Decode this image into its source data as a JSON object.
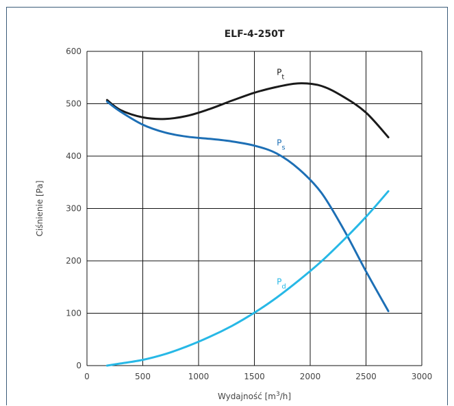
{
  "chart_data": {
    "type": "line",
    "title": "ELF-4-250T",
    "xlabel_parts": {
      "base": "Wydajność [m",
      "sup": "3",
      "tail": "/h]"
    },
    "ylabel": "Ciśnienie [Pa]",
    "xlim": [
      0,
      3000
    ],
    "ylim": [
      0,
      600
    ],
    "xticks": [
      0,
      500,
      1000,
      1500,
      2000,
      2500,
      3000
    ],
    "yticks": [
      0,
      100,
      200,
      300,
      400,
      500,
      600
    ],
    "grid": true,
    "series": [
      {
        "name": "Pt",
        "label_base": "P",
        "label_sub": "t",
        "color": "#1a1a1a",
        "label_at": [
          1700,
          555
        ],
        "x": [
          180,
          300,
          500,
          700,
          900,
          1100,
          1300,
          1500,
          1700,
          1900,
          2100,
          2300,
          2500,
          2700
        ],
        "y": [
          507,
          488,
          474,
          471,
          477,
          490,
          506,
          521,
          532,
          539,
          534,
          513,
          483,
          436
        ]
      },
      {
        "name": "Ps",
        "label_base": "P",
        "label_sub": "s",
        "color": "#1d6fb5",
        "label_at": [
          1700,
          420
        ],
        "x": [
          180,
          300,
          500,
          700,
          900,
          1100,
          1300,
          1500,
          1700,
          1900,
          2100,
          2300,
          2500,
          2700
        ],
        "y": [
          504,
          485,
          460,
          445,
          437,
          433,
          428,
          420,
          405,
          375,
          330,
          260,
          180,
          104
        ]
      },
      {
        "name": "Pd",
        "label_base": "P",
        "label_sub": "d",
        "color": "#27b8e6",
        "label_at": [
          1700,
          155
        ],
        "x": [
          180,
          300,
          500,
          700,
          900,
          1100,
          1300,
          1500,
          1700,
          1900,
          2100,
          2300,
          2500,
          2700
        ],
        "y": [
          0,
          4,
          11,
          22,
          37,
          55,
          76,
          101,
          130,
          163,
          199,
          240,
          284,
          333
        ]
      }
    ]
  }
}
